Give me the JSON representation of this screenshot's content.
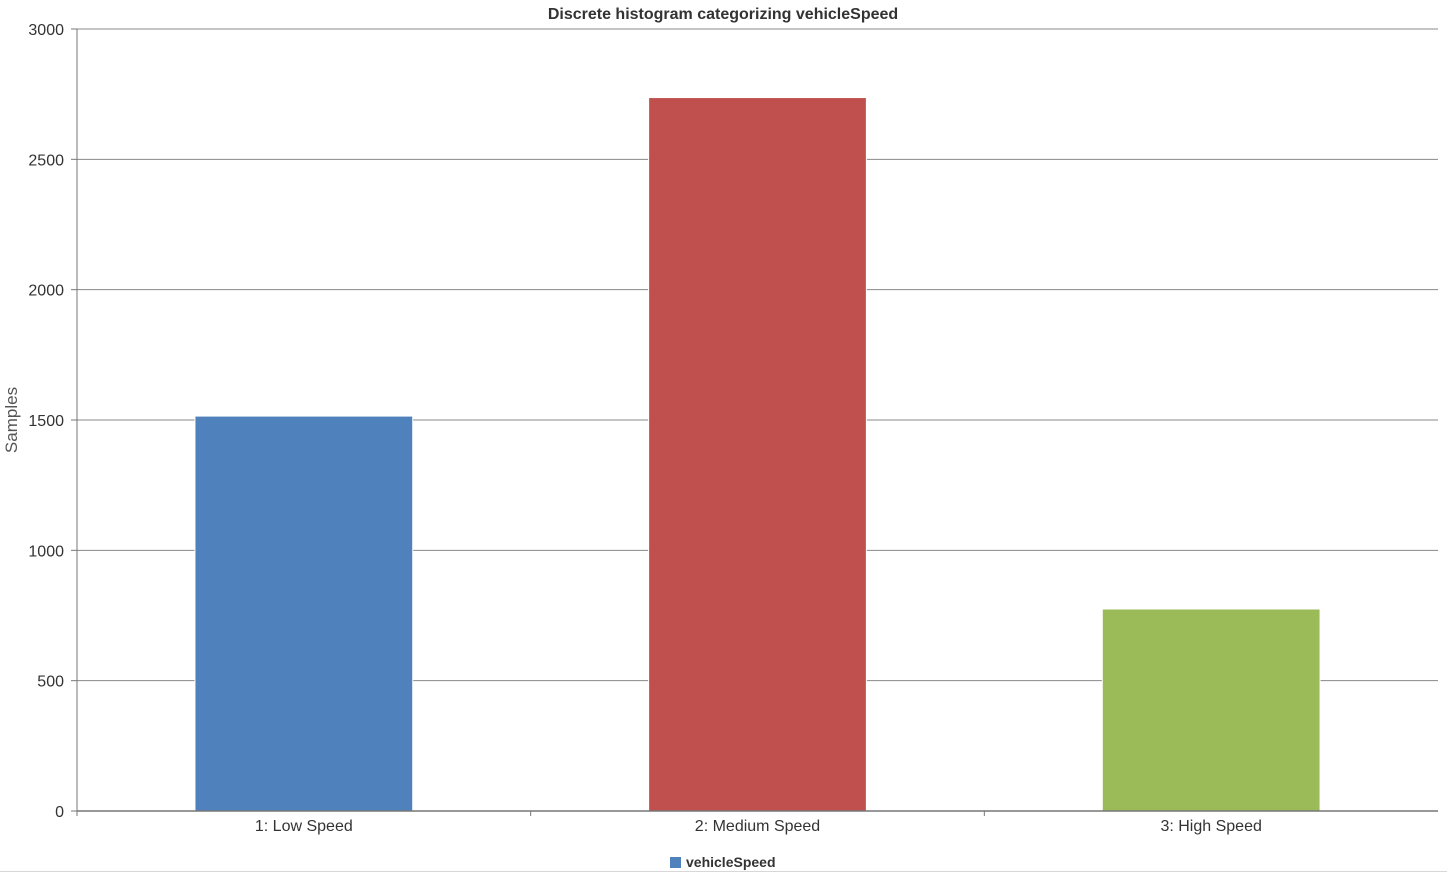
{
  "chart_data": {
    "type": "bar",
    "title": "Discrete histogram categorizing vehicleSpeed",
    "xlabel": "",
    "ylabel": "Samples",
    "ylim": [
      0,
      3000
    ],
    "yticks": [
      0,
      500,
      1000,
      1500,
      2000,
      2500,
      3000
    ],
    "categories": [
      "1: Low Speed",
      "2: Medium Speed",
      "3: High Speed"
    ],
    "series": [
      {
        "name": "vehicleSpeed",
        "values": [
          1515,
          2737,
          775
        ]
      }
    ],
    "bar_colors": [
      "#4f81bd",
      "#c0504d",
      "#9bbb59"
    ],
    "grid": true,
    "legend_position": "bottom-center"
  }
}
